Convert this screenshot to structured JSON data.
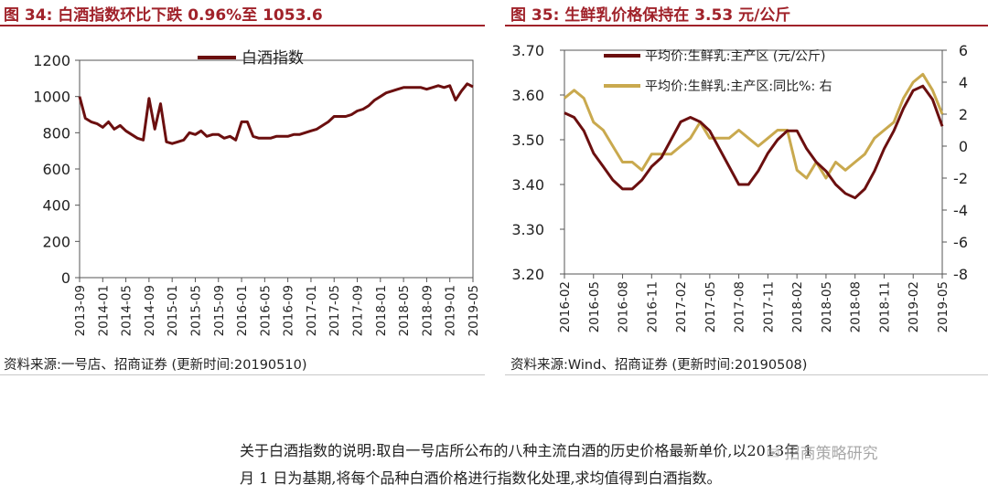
{
  "left": {
    "title": "图 34:  白酒指数环比下跌 0.96%至 1053.6",
    "source": "资料来源:一号店、招商证券 (更新时间:20190510)"
  },
  "right": {
    "title": "图 35:  生鲜乳价格保持在 3.53 元/公斤",
    "source": "资料来源:Wind、招商证券 (更新时间:20190508)"
  },
  "note": {
    "line1": "关于白酒指数的说明:取自一号店所公布的八种主流白酒的历史价格最新单价,以2013年 1",
    "line2": "月 1 日为基期,将每个品种白酒价格进行指数化处理,求均值得到白酒指数。"
  },
  "watermark": "招商策略研究",
  "colors": {
    "title_red": "#a0222a",
    "baijiu_line": "#6b0f0f",
    "milk_price_line": "#6b0f0f",
    "milk_yoy_line": "#c9a94e"
  },
  "chart_data": [
    {
      "type": "line",
      "title": "",
      "ylim": [
        0,
        1200
      ],
      "yticks": [
        "0",
        "200",
        "400",
        "600",
        "800",
        "1000",
        "1200"
      ],
      "xticks": [
        "2013-09",
        "2014-01",
        "2014-05",
        "2014-09",
        "2015-01",
        "2015-05",
        "2015-09",
        "2016-01",
        "2016-05",
        "2016-09",
        "2017-01",
        "2017-05",
        "2017-09",
        "2018-01",
        "2018-05",
        "2018-09",
        "2019-01",
        "2019-05"
      ],
      "grid": false,
      "legend_position": "top-center",
      "series": [
        {
          "name": "白酒指数",
          "x": [
            "2013-09",
            "2013-10",
            "2013-11",
            "2013-12",
            "2014-01",
            "2014-02",
            "2014-03",
            "2014-04",
            "2014-05",
            "2014-06",
            "2014-07",
            "2014-08",
            "2014-09",
            "2014-10",
            "2014-11",
            "2014-12",
            "2015-01",
            "2015-02",
            "2015-03",
            "2015-04",
            "2015-05",
            "2015-06",
            "2015-07",
            "2015-08",
            "2015-09",
            "2015-10",
            "2015-11",
            "2015-12",
            "2016-01",
            "2016-02",
            "2016-03",
            "2016-04",
            "2016-05",
            "2016-06",
            "2016-07",
            "2016-08",
            "2016-09",
            "2016-10",
            "2016-11",
            "2016-12",
            "2017-01",
            "2017-02",
            "2017-03",
            "2017-04",
            "2017-05",
            "2017-06",
            "2017-07",
            "2017-08",
            "2017-09",
            "2017-10",
            "2017-11",
            "2017-12",
            "2018-01",
            "2018-02",
            "2018-03",
            "2018-04",
            "2018-05",
            "2018-06",
            "2018-07",
            "2018-08",
            "2018-09",
            "2018-10",
            "2018-11",
            "2018-12",
            "2019-01",
            "2019-02",
            "2019-03",
            "2019-04",
            "2019-05"
          ],
          "values": [
            1000,
            880,
            860,
            850,
            830,
            860,
            820,
            840,
            810,
            790,
            770,
            760,
            990,
            820,
            960,
            750,
            740,
            750,
            760,
            800,
            790,
            810,
            780,
            790,
            790,
            770,
            780,
            760,
            860,
            860,
            780,
            770,
            770,
            770,
            780,
            780,
            780,
            790,
            790,
            800,
            810,
            820,
            840,
            860,
            890,
            890,
            890,
            900,
            920,
            930,
            950,
            980,
            1000,
            1020,
            1030,
            1040,
            1050,
            1050,
            1050,
            1050,
            1040,
            1050,
            1060,
            1050,
            1060,
            980,
            1030,
            1070,
            1054
          ]
        }
      ]
    },
    {
      "type": "line",
      "title": "",
      "ylim": [
        3.2,
        3.7
      ],
      "y2lim": [
        -8,
        6
      ],
      "yticks": [
        "3.20",
        "3.30",
        "3.40",
        "3.50",
        "3.60",
        "3.70"
      ],
      "y2ticks": [
        "-8",
        "-6",
        "-4",
        "-2",
        "0",
        "2",
        "4",
        "6"
      ],
      "xticks": [
        "2016-02",
        "2016-05",
        "2016-08",
        "2016-11",
        "2017-02",
        "2017-05",
        "2017-08",
        "2017-11",
        "2018-02",
        "2018-05",
        "2018-08",
        "2018-11",
        "2019-02",
        "2019-05"
      ],
      "grid": false,
      "legend_position": "top-center",
      "series": [
        {
          "name": "平均价:生鲜乳:主产区 (元/公斤)",
          "axis": "left",
          "x": [
            "2016-02",
            "2016-03",
            "2016-04",
            "2016-05",
            "2016-06",
            "2016-07",
            "2016-08",
            "2016-09",
            "2016-10",
            "2016-11",
            "2016-12",
            "2017-01",
            "2017-02",
            "2017-03",
            "2017-04",
            "2017-05",
            "2017-06",
            "2017-07",
            "2017-08",
            "2017-09",
            "2017-10",
            "2017-11",
            "2017-12",
            "2018-01",
            "2018-02",
            "2018-03",
            "2018-04",
            "2018-05",
            "2018-06",
            "2018-07",
            "2018-08",
            "2018-09",
            "2018-10",
            "2018-11",
            "2018-12",
            "2019-01",
            "2019-02",
            "2019-03",
            "2019-04",
            "2019-05"
          ],
          "values": [
            3.56,
            3.55,
            3.52,
            3.47,
            3.44,
            3.41,
            3.39,
            3.39,
            3.41,
            3.44,
            3.46,
            3.5,
            3.54,
            3.55,
            3.54,
            3.52,
            3.48,
            3.44,
            3.4,
            3.4,
            3.43,
            3.47,
            3.5,
            3.52,
            3.52,
            3.48,
            3.45,
            3.43,
            3.4,
            3.38,
            3.37,
            3.39,
            3.43,
            3.48,
            3.52,
            3.57,
            3.61,
            3.62,
            3.59,
            3.53
          ]
        },
        {
          "name": "平均价:生鲜乳:主产区:同比%: 右",
          "axis": "right",
          "x": [
            "2016-02",
            "2016-03",
            "2016-04",
            "2016-05",
            "2016-06",
            "2016-07",
            "2016-08",
            "2016-09",
            "2016-10",
            "2016-11",
            "2016-12",
            "2017-01",
            "2017-02",
            "2017-03",
            "2017-04",
            "2017-05",
            "2017-06",
            "2017-07",
            "2017-08",
            "2017-09",
            "2017-10",
            "2017-11",
            "2017-12",
            "2018-01",
            "2018-02",
            "2018-03",
            "2018-04",
            "2018-05",
            "2018-06",
            "2018-07",
            "2018-08",
            "2018-09",
            "2018-10",
            "2018-11",
            "2018-12",
            "2019-01",
            "2019-02",
            "2019-03",
            "2019-04",
            "2019-05"
          ],
          "values": [
            3.0,
            3.5,
            3.0,
            1.5,
            1.0,
            0.0,
            -1.0,
            -1.0,
            -1.5,
            -0.5,
            -0.5,
            -0.5,
            0.0,
            0.5,
            1.5,
            0.5,
            0.5,
            0.5,
            1.0,
            0.5,
            0.0,
            0.5,
            1.0,
            1.0,
            -1.5,
            -2.0,
            -1.0,
            -2.0,
            -1.0,
            -1.5,
            -1.0,
            -0.5,
            0.5,
            1.0,
            1.5,
            3.0,
            4.0,
            4.5,
            3.5,
            2.0
          ]
        }
      ]
    }
  ]
}
